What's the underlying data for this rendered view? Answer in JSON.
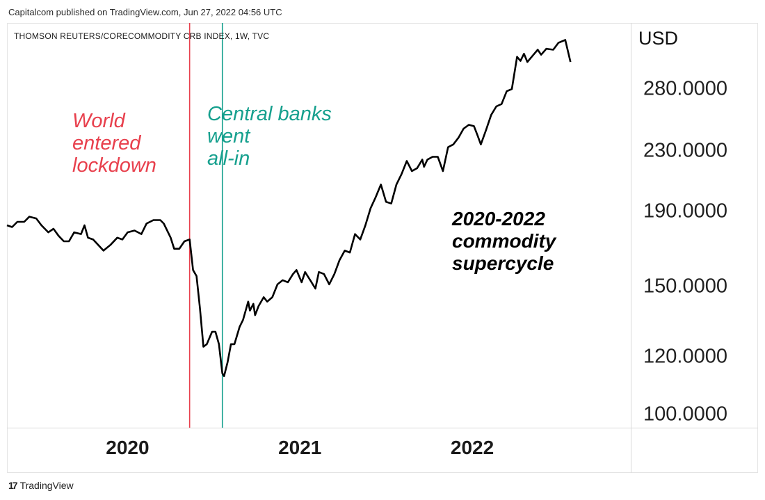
{
  "publisher_line": "Capitalcom published on TradingView.com, Jun 27, 2022 04:56 UTC",
  "footer": {
    "logo_mark": "17",
    "brand": "TradingView"
  },
  "colors": {
    "line": "#000000",
    "lockdown": "#e8404d",
    "central_banks": "#16a08e"
  },
  "chart_data": {
    "type": "line",
    "title": "THOMSON REUTERS/CORECOMMODITY CRB INDEX, 1W, TVC",
    "ylabel": "USD",
    "yscale": "log",
    "ylim": [
      96,
      345
    ],
    "xlim": [
      2019.3,
      2022.92
    ],
    "y_ticks": [
      "280.0000",
      "230.0000",
      "190.0000",
      "150.0000",
      "120.0000",
      "100.0000"
    ],
    "y_tick_values": [
      280,
      230,
      190,
      150,
      120,
      100
    ],
    "x_ticks": [
      "2020",
      "2021",
      "2022"
    ],
    "x_tick_values": [
      2020,
      2021,
      2022
    ],
    "grid": false,
    "series": [
      {
        "values": [
          [
            2019.3,
            182
          ],
          [
            2019.33,
            181
          ],
          [
            2019.36,
            184
          ],
          [
            2019.4,
            184
          ],
          [
            2019.43,
            187
          ],
          [
            2019.47,
            186
          ],
          [
            2019.5,
            182
          ],
          [
            2019.54,
            178
          ],
          [
            2019.57,
            180
          ],
          [
            2019.6,
            176
          ],
          [
            2019.63,
            173
          ],
          [
            2019.66,
            173
          ],
          [
            2019.69,
            178
          ],
          [
            2019.73,
            177
          ],
          [
            2019.75,
            182
          ],
          [
            2019.77,
            175
          ],
          [
            2019.8,
            174
          ],
          [
            2019.83,
            171
          ],
          [
            2019.86,
            168
          ],
          [
            2019.9,
            171
          ],
          [
            2019.94,
            175
          ],
          [
            2019.97,
            174
          ],
          [
            2020.0,
            178
          ],
          [
            2020.04,
            179
          ],
          [
            2020.08,
            177
          ],
          [
            2020.11,
            183
          ],
          [
            2020.15,
            185
          ],
          [
            2020.19,
            185
          ],
          [
            2020.21,
            183
          ],
          [
            2020.25,
            175
          ],
          [
            2020.27,
            169
          ],
          [
            2020.3,
            169
          ],
          [
            2020.33,
            173
          ],
          [
            2020.36,
            174
          ],
          [
            2020.38,
            158
          ],
          [
            2020.4,
            155
          ],
          [
            2020.42,
            140
          ],
          [
            2020.44,
            124
          ],
          [
            2020.46,
            125
          ],
          [
            2020.49,
            130
          ],
          [
            2020.51,
            130
          ],
          [
            2020.53,
            125
          ],
          [
            2020.55,
            114
          ],
          [
            2020.56,
            113
          ],
          [
            2020.58,
            118
          ],
          [
            2020.6,
            125
          ],
          [
            2020.62,
            125
          ],
          [
            2020.65,
            132
          ],
          [
            2020.67,
            135
          ],
          [
            2020.7,
            143
          ],
          [
            2020.71,
            139
          ],
          [
            2020.73,
            142
          ],
          [
            2020.74,
            137
          ],
          [
            2020.76,
            141
          ],
          [
            2020.79,
            145
          ],
          [
            2020.81,
            143
          ],
          [
            2020.84,
            145
          ],
          [
            2020.87,
            151
          ],
          [
            2020.9,
            153
          ],
          [
            2020.93,
            152
          ],
          [
            2020.96,
            156
          ],
          [
            2020.98,
            158
          ],
          [
            2021.01,
            152
          ],
          [
            2021.03,
            157
          ],
          [
            2021.06,
            153
          ],
          [
            2021.09,
            149
          ],
          [
            2021.11,
            157
          ],
          [
            2021.14,
            156
          ],
          [
            2021.17,
            151
          ],
          [
            2021.2,
            156
          ],
          [
            2021.23,
            163
          ],
          [
            2021.26,
            168
          ],
          [
            2021.29,
            167
          ],
          [
            2021.32,
            177
          ],
          [
            2021.35,
            174
          ],
          [
            2021.38,
            182
          ],
          [
            2021.41,
            192
          ],
          [
            2021.44,
            199
          ],
          [
            2021.47,
            207
          ],
          [
            2021.5,
            196
          ],
          [
            2021.53,
            195
          ],
          [
            2021.56,
            207
          ],
          [
            2021.59,
            214
          ],
          [
            2021.62,
            223
          ],
          [
            2021.65,
            216
          ],
          [
            2021.68,
            218
          ],
          [
            2021.71,
            224
          ],
          [
            2021.72,
            219
          ],
          [
            2021.74,
            224
          ],
          [
            2021.77,
            226
          ],
          [
            2021.8,
            226
          ],
          [
            2021.83,
            216
          ],
          [
            2021.86,
            233
          ],
          [
            2021.89,
            235
          ],
          [
            2021.92,
            240
          ],
          [
            2021.95,
            247
          ],
          [
            2021.98,
            250
          ],
          [
            2022.01,
            249
          ],
          [
            2022.03,
            242
          ],
          [
            2022.05,
            235
          ],
          [
            2022.08,
            246
          ],
          [
            2022.11,
            258
          ],
          [
            2022.14,
            265
          ],
          [
            2022.17,
            267
          ],
          [
            2022.2,
            278
          ],
          [
            2022.23,
            280
          ],
          [
            2022.26,
            310
          ],
          [
            2022.28,
            306
          ],
          [
            2022.3,
            313
          ],
          [
            2022.32,
            305
          ],
          [
            2022.35,
            311
          ],
          [
            2022.38,
            317
          ],
          [
            2022.4,
            312
          ],
          [
            2022.43,
            318
          ],
          [
            2022.47,
            317
          ],
          [
            2022.5,
            324
          ],
          [
            2022.54,
            327
          ],
          [
            2022.57,
            305
          ]
        ]
      }
    ],
    "events": [
      {
        "x": 2020.36,
        "label": "World\nentered\nlockdown"
      },
      {
        "x": 2020.55,
        "label": "Central banks\nwent\nall-in"
      }
    ],
    "annotation": "2020-2022\ncommodity\nsupercycle"
  }
}
